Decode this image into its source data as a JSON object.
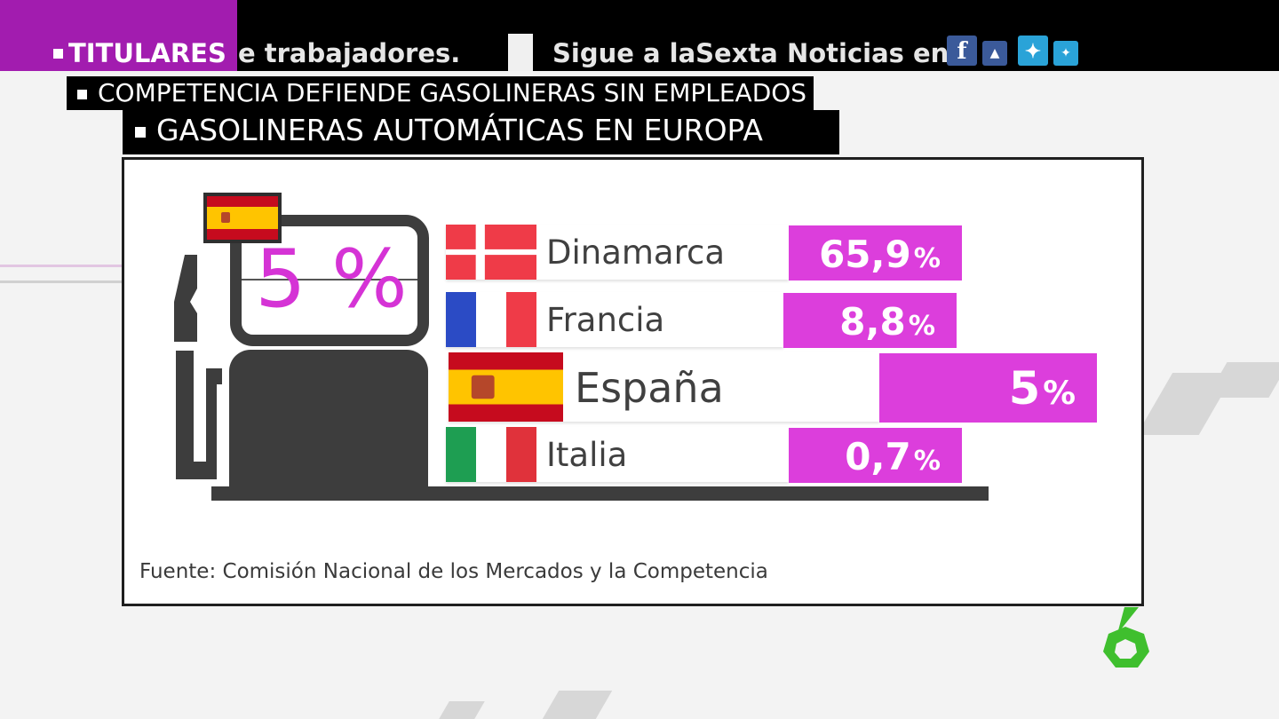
{
  "ticker": {
    "label": "TITULARES",
    "scroll_text": "e trabajadores.",
    "follow_text": "Sigue a laSexta Noticias en",
    "social": [
      {
        "icon": "facebook-icon",
        "glyph": "f",
        "color": "#3b5a9a"
      },
      {
        "icon": "facebook-small-icon",
        "glyph": "▲",
        "color": "#3b5a9a"
      },
      {
        "icon": "twitter-icon",
        "glyph": "✦",
        "color": "#2aa3d8"
      },
      {
        "icon": "twitter-small-icon",
        "glyph": "✦",
        "color": "#2aa3d8"
      }
    ]
  },
  "headlines": {
    "primary": "COMPETENCIA DEFIENDE GASOLINERAS SIN EMPLEADOS",
    "secondary": "GASOLINERAS AUTOMÁTICAS EN EUROPA"
  },
  "pump": {
    "value_text": "5 %",
    "flag": "spain-flag-icon"
  },
  "source": "Fuente: Comisión Nacional de los Mercados y la Competencia",
  "colors": {
    "accent": "#dc3edc",
    "pump": "#3d3d3d",
    "ticker_label": "#a21caf"
  },
  "chart_data": {
    "type": "bar",
    "title": "GASOLINERAS AUTOMÁTICAS EN EUROPA",
    "categories": [
      "Dinamarca",
      "Francia",
      "España",
      "Italia"
    ],
    "values": [
      65.9,
      8.8,
      5,
      0.7
    ],
    "unit": "%",
    "value_labels": [
      "65,9",
      "8,8",
      "5",
      "0,7"
    ],
    "highlight": "España",
    "flags": [
      "denmark-flag-icon",
      "france-flag-icon",
      "spain-flag-icon",
      "italy-flag-icon"
    ]
  }
}
